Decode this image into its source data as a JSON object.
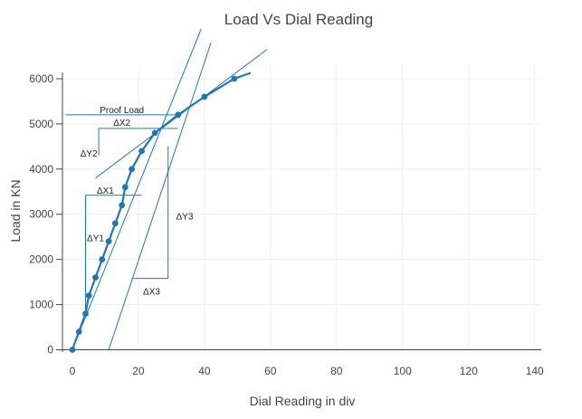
{
  "chart_data": {
    "type": "line",
    "title": "Load Vs Dial Reading",
    "xlabel": "Dial Reading in div",
    "ylabel": "Load in KN",
    "xlim": [
      -3,
      142
    ],
    "ylim": [
      -50,
      6300
    ],
    "xticks": [
      0,
      20,
      40,
      60,
      80,
      100,
      120,
      140
    ],
    "yticks": [
      0,
      1000,
      2000,
      3000,
      4000,
      5000,
      6000
    ],
    "grid": true,
    "color": "#1f77b4",
    "series": [
      {
        "x": [
          0,
          2,
          4,
          5,
          7,
          9,
          11,
          13,
          15,
          16,
          18,
          21,
          25,
          32,
          40,
          49
        ],
        "y": [
          0,
          400,
          800,
          1200,
          1600,
          2000,
          2400,
          2800,
          3200,
          3600,
          4000,
          4400,
          4800,
          5200,
          5600,
          6000
        ]
      }
    ],
    "curve_extension": {
      "x": [
        49,
        54
      ],
      "y": [
        6000,
        6130
      ]
    },
    "tangent_lines": [
      {
        "x": [
          0,
          39
        ],
        "y": [
          0,
          7100
        ]
      },
      {
        "x": [
          11,
          42
        ],
        "y": [
          0,
          6800
        ]
      },
      {
        "x": [
          7,
          59
        ],
        "y": [
          3800,
          6650
        ]
      }
    ],
    "construction_lines": [
      {
        "x": [
          -2,
          32
        ],
        "y": [
          5200,
          5200
        ]
      },
      {
        "x": [
          8,
          32
        ],
        "y": [
          4900,
          4900
        ]
      },
      {
        "x": [
          8,
          8
        ],
        "y": [
          4900,
          4300
        ]
      },
      {
        "x": [
          4,
          21
        ],
        "y": [
          3420,
          3420
        ]
      },
      {
        "x": [
          4,
          4
        ],
        "y": [
          3420,
          800
        ]
      },
      {
        "x": [
          29,
          29
        ],
        "y": [
          4500,
          1580
        ]
      },
      {
        "x": [
          29,
          18
        ],
        "y": [
          1580,
          1580
        ]
      }
    ],
    "annotations": [
      {
        "text": "Proof Load",
        "x": 15,
        "y": 5320
      },
      {
        "text": "ΔX2",
        "x": 15,
        "y": 5040
      },
      {
        "text": "ΔY2",
        "x": 5,
        "y": 4360
      },
      {
        "text": "ΔX1",
        "x": 10,
        "y": 3540
      },
      {
        "text": "ΔY1",
        "x": 7,
        "y": 2480
      },
      {
        "text": "ΔY3",
        "x": 34,
        "y": 2960
      },
      {
        "text": "ΔX3",
        "x": 24,
        "y": 1300
      }
    ]
  }
}
